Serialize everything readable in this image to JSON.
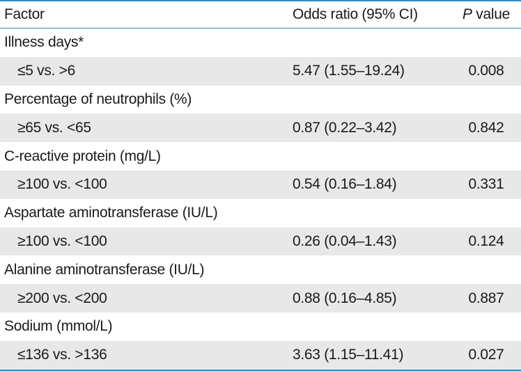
{
  "table": {
    "headers": {
      "factor": "Factor",
      "odds_ratio": "Odds ratio (95% CI)",
      "p_italic": "P",
      "p_rest": " value"
    },
    "groups": [
      {
        "label": "Illness days*",
        "comparison": "≤5 vs. >6",
        "odds_ratio": "5.47 (1.55–19.24)",
        "p_value": "0.008"
      },
      {
        "label": "Percentage of neutrophils (%)",
        "comparison": "≥65 vs. <65",
        "odds_ratio": "0.87 (0.22–3.42)",
        "p_value": "0.842"
      },
      {
        "label": "C-reactive protein (mg/L)",
        "comparison": "≥100 vs. <100",
        "odds_ratio": "0.54 (0.16–1.84)",
        "p_value": "0.331"
      },
      {
        "label": "Aspartate aminotransferase (IU/L)",
        "comparison": "≥100 vs. <100",
        "odds_ratio": "0.26 (0.04–1.43)",
        "p_value": "0.124"
      },
      {
        "label": "Alanine aminotransferase (IU/L)",
        "comparison": "≥200 vs. <200",
        "odds_ratio": "0.88 (0.16–4.85)",
        "p_value": "0.887"
      },
      {
        "label": "Sodium (mmol/L)",
        "comparison": "≤136 vs. >136",
        "odds_ratio": "3.63 (1.15–11.41)",
        "p_value": "0.027"
      }
    ]
  }
}
